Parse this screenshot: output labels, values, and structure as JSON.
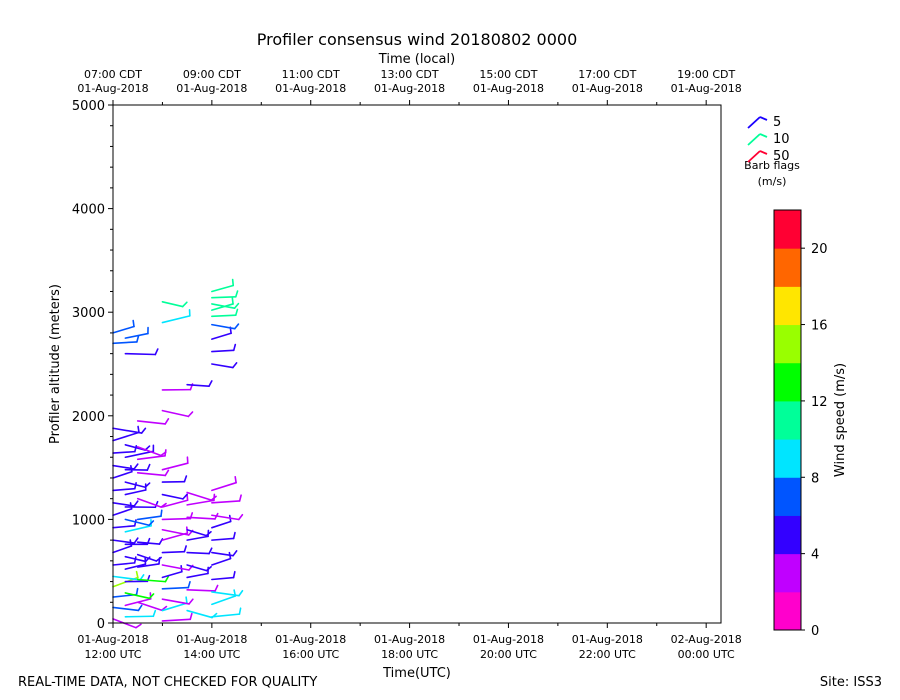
{
  "chart_data": {
    "type": "scatter",
    "title": "Profiler consensus wind 20180802 0000",
    "top_axis_label": "Time (local)",
    "top_ticks": [
      {
        "l1": "07:00 CDT",
        "l2": "01-Aug-2018"
      },
      {
        "l1": "09:00 CDT",
        "l2": "01-Aug-2018"
      },
      {
        "l1": "11:00 CDT",
        "l2": "01-Aug-2018"
      },
      {
        "l1": "13:00 CDT",
        "l2": "01-Aug-2018"
      },
      {
        "l1": "15:00 CDT",
        "l2": "01-Aug-2018"
      },
      {
        "l1": "17:00 CDT",
        "l2": "01-Aug-2018"
      },
      {
        "l1": "19:00 CDT",
        "l2": "01-Aug-2018"
      }
    ],
    "bottom_ticks": [
      {
        "l1": "01-Aug-2018",
        "l2": "12:00 UTC"
      },
      {
        "l1": "01-Aug-2018",
        "l2": "14:00 UTC"
      },
      {
        "l1": "01-Aug-2018",
        "l2": "16:00 UTC"
      },
      {
        "l1": "01-Aug-2018",
        "l2": "18:00 UTC"
      },
      {
        "l1": "01-Aug-2018",
        "l2": "20:00 UTC"
      },
      {
        "l1": "01-Aug-2018",
        "l2": "22:00 UTC"
      },
      {
        "l1": "02-Aug-2018",
        "l2": "00:00 UTC"
      }
    ],
    "xlabel": "Time(UTC)",
    "ylabel": "Profiler altitude (meters)",
    "xlim_hours_utc": [
      12,
      24.3
    ],
    "ylim": [
      0,
      5000
    ],
    "y_ticks": [
      0,
      1000,
      2000,
      3000,
      4000,
      5000
    ],
    "grid": false,
    "legend": {
      "placement": "top-right",
      "items": [
        {
          "label": "5",
          "color": "#1a00ff"
        },
        {
          "label": "10",
          "color": "#00ff99"
        },
        {
          "label": "50",
          "color": "#ff0033"
        }
      ],
      "caption_line1": "Barb flags",
      "caption_line2": "(m/s)"
    },
    "colorbar": {
      "label": "Wind speed (m/s)",
      "min": 0,
      "max": 22,
      "tick_values": [
        0,
        4,
        8,
        12,
        16,
        20
      ],
      "bands": [
        "#ff00cc",
        "#c000ff",
        "#3300ff",
        "#0055ff",
        "#00e5ff",
        "#00ff99",
        "#00ff00",
        "#99ff00",
        "#ffe600",
        "#ff6600",
        "#ff0033"
      ]
    },
    "series": [
      {
        "time_utc": "12:00",
        "barbs": [
          {
            "alt": 40,
            "spd": 3
          },
          {
            "alt": 150,
            "spd": 7
          },
          {
            "alt": 250,
            "spd": 6
          },
          {
            "alt": 350,
            "spd": 14
          },
          {
            "alt": 450,
            "spd": 8
          },
          {
            "alt": 560,
            "spd": 5
          },
          {
            "alt": 680,
            "spd": 5
          },
          {
            "alt": 800,
            "spd": 5
          },
          {
            "alt": 920,
            "spd": 5
          },
          {
            "alt": 1040,
            "spd": 5
          },
          {
            "alt": 1160,
            "spd": 5
          },
          {
            "alt": 1280,
            "spd": 5
          },
          {
            "alt": 1400,
            "spd": 5
          },
          {
            "alt": 1520,
            "spd": 5
          },
          {
            "alt": 1640,
            "spd": 5
          },
          {
            "alt": 1760,
            "spd": 4
          },
          {
            "alt": 1880,
            "spd": 4
          },
          {
            "alt": 2700,
            "spd": 6
          },
          {
            "alt": 2800,
            "spd": 6
          }
        ]
      },
      {
        "time_utc": "12:15",
        "barbs": [
          {
            "alt": 60,
            "spd": 8
          },
          {
            "alt": 170,
            "spd": 3
          },
          {
            "alt": 290,
            "spd": 12
          },
          {
            "alt": 400,
            "spd": 5
          },
          {
            "alt": 520,
            "spd": 5
          },
          {
            "alt": 640,
            "spd": 5
          },
          {
            "alt": 760,
            "spd": 5
          },
          {
            "alt": 880,
            "spd": 8
          },
          {
            "alt": 1000,
            "spd": 7
          },
          {
            "alt": 1120,
            "spd": 4
          },
          {
            "alt": 1240,
            "spd": 5
          },
          {
            "alt": 1360,
            "spd": 5
          },
          {
            "alt": 1480,
            "spd": 5
          },
          {
            "alt": 1600,
            "spd": 4
          },
          {
            "alt": 1720,
            "spd": 5
          },
          {
            "alt": 2600,
            "spd": 4
          },
          {
            "alt": 2750,
            "spd": 6
          }
        ]
      },
      {
        "time_utc": "12:30",
        "barbs": [
          {
            "alt": 200,
            "spd": 3
          },
          {
            "alt": 420,
            "spd": 13
          },
          {
            "alt": 540,
            "spd": 5
          },
          {
            "alt": 660,
            "spd": 5
          },
          {
            "alt": 780,
            "spd": 5
          },
          {
            "alt": 1000,
            "spd": 6
          },
          {
            "alt": 1200,
            "spd": 3
          },
          {
            "alt": 1450,
            "spd": 3
          },
          {
            "alt": 1580,
            "spd": 3
          },
          {
            "alt": 1700,
            "spd": 3
          },
          {
            "alt": 1950,
            "spd": 3
          }
        ]
      },
      {
        "time_utc": "13:00",
        "barbs": [
          {
            "alt": 20,
            "spd": 3
          },
          {
            "alt": 120,
            "spd": 8
          },
          {
            "alt": 230,
            "spd": 3
          },
          {
            "alt": 330,
            "spd": 7
          },
          {
            "alt": 440,
            "spd": 5
          },
          {
            "alt": 560,
            "spd": 3
          },
          {
            "alt": 680,
            "spd": 5
          },
          {
            "alt": 800,
            "spd": 3
          },
          {
            "alt": 900,
            "spd": 3
          },
          {
            "alt": 1000,
            "spd": 3
          },
          {
            "alt": 1120,
            "spd": 3
          },
          {
            "alt": 1240,
            "spd": 5
          },
          {
            "alt": 1360,
            "spd": 5
          },
          {
            "alt": 1480,
            "spd": 3
          },
          {
            "alt": 2050,
            "spd": 3
          },
          {
            "alt": 2250,
            "spd": 3
          },
          {
            "alt": 2900,
            "spd": 9
          },
          {
            "alt": 3100,
            "spd": 10
          }
        ]
      },
      {
        "time_utc": "13:30",
        "barbs": [
          {
            "alt": 120,
            "spd": 8
          },
          {
            "alt": 320,
            "spd": 3
          },
          {
            "alt": 440,
            "spd": 5
          },
          {
            "alt": 560,
            "spd": 5
          },
          {
            "alt": 680,
            "spd": 5
          },
          {
            "alt": 800,
            "spd": 5
          },
          {
            "alt": 900,
            "spd": 5
          },
          {
            "alt": 1020,
            "spd": 3
          },
          {
            "alt": 1140,
            "spd": 3
          },
          {
            "alt": 1260,
            "spd": 3
          },
          {
            "alt": 2300,
            "spd": 5
          }
        ]
      },
      {
        "time_utc": "14:00",
        "barbs": [
          {
            "alt": 60,
            "spd": 8
          },
          {
            "alt": 180,
            "spd": 8
          },
          {
            "alt": 300,
            "spd": 8
          },
          {
            "alt": 420,
            "spd": 5
          },
          {
            "alt": 560,
            "spd": 5
          },
          {
            "alt": 680,
            "spd": 5
          },
          {
            "alt": 800,
            "spd": 5
          },
          {
            "alt": 920,
            "spd": 5
          },
          {
            "alt": 1040,
            "spd": 3
          },
          {
            "alt": 1160,
            "spd": 3
          },
          {
            "alt": 1280,
            "spd": 3
          },
          {
            "alt": 2500,
            "spd": 5
          },
          {
            "alt": 2620,
            "spd": 5
          },
          {
            "alt": 2740,
            "spd": 5
          },
          {
            "alt": 2880,
            "spd": 6
          },
          {
            "alt": 2960,
            "spd": 11
          },
          {
            "alt": 3020,
            "spd": 11
          },
          {
            "alt": 3080,
            "spd": 11
          },
          {
            "alt": 3140,
            "spd": 11
          },
          {
            "alt": 3200,
            "spd": 11
          }
        ]
      }
    ]
  },
  "footer": {
    "left_note": "REAL-TIME DATA, NOT CHECKED FOR QUALITY",
    "site": "Site: ISS3"
  }
}
